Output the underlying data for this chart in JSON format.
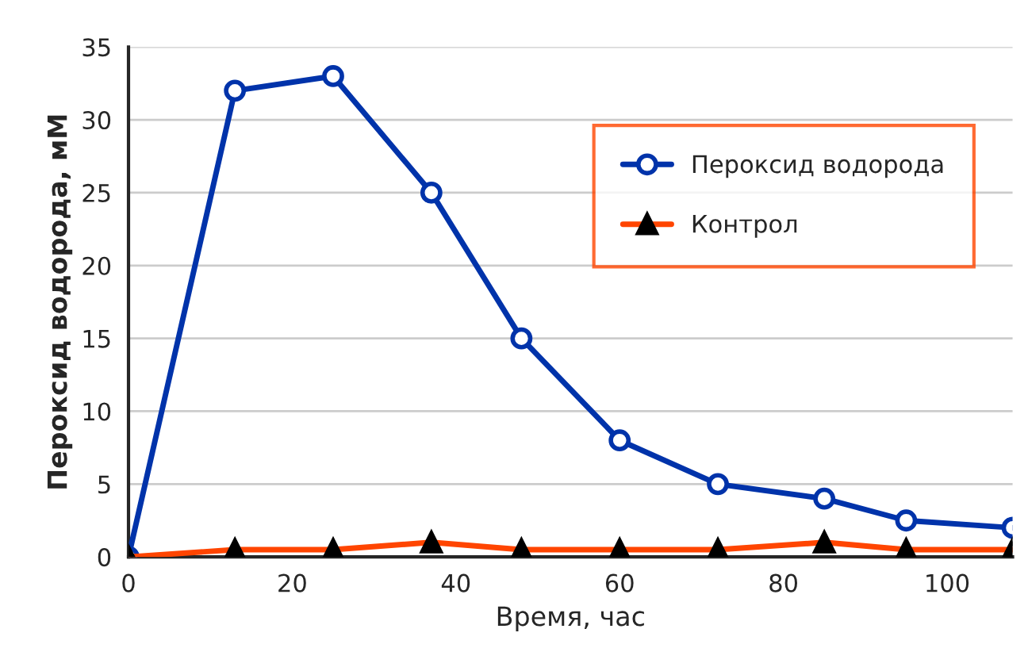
{
  "chart_data": {
    "type": "line",
    "xlabel": "Время, час",
    "ylabel": "Пероксид водорода, мМ",
    "x": [
      0,
      13,
      25,
      37,
      48,
      60,
      72,
      85,
      95,
      108
    ],
    "series": [
      {
        "name": "Пероксид водорода",
        "color": "#0033aa",
        "marker": "circle",
        "values": [
          0,
          32,
          33,
          25,
          15,
          8,
          5,
          4,
          2.5,
          2
        ]
      },
      {
        "name": "Контрол",
        "color": "#ff4500",
        "marker": "triangle",
        "values": [
          0,
          0.5,
          0.5,
          1,
          0.5,
          0.5,
          0.5,
          1,
          0.5,
          0.5
        ]
      }
    ],
    "xlim": [
      0,
      108
    ],
    "xticks": [
      0,
      20,
      40,
      60,
      80,
      100
    ],
    "ylim": [
      0,
      35
    ],
    "yticks": [
      0,
      5,
      10,
      15,
      20,
      25,
      30,
      35
    ],
    "grid": "y",
    "legend": "top right",
    "line_style": "solid"
  }
}
